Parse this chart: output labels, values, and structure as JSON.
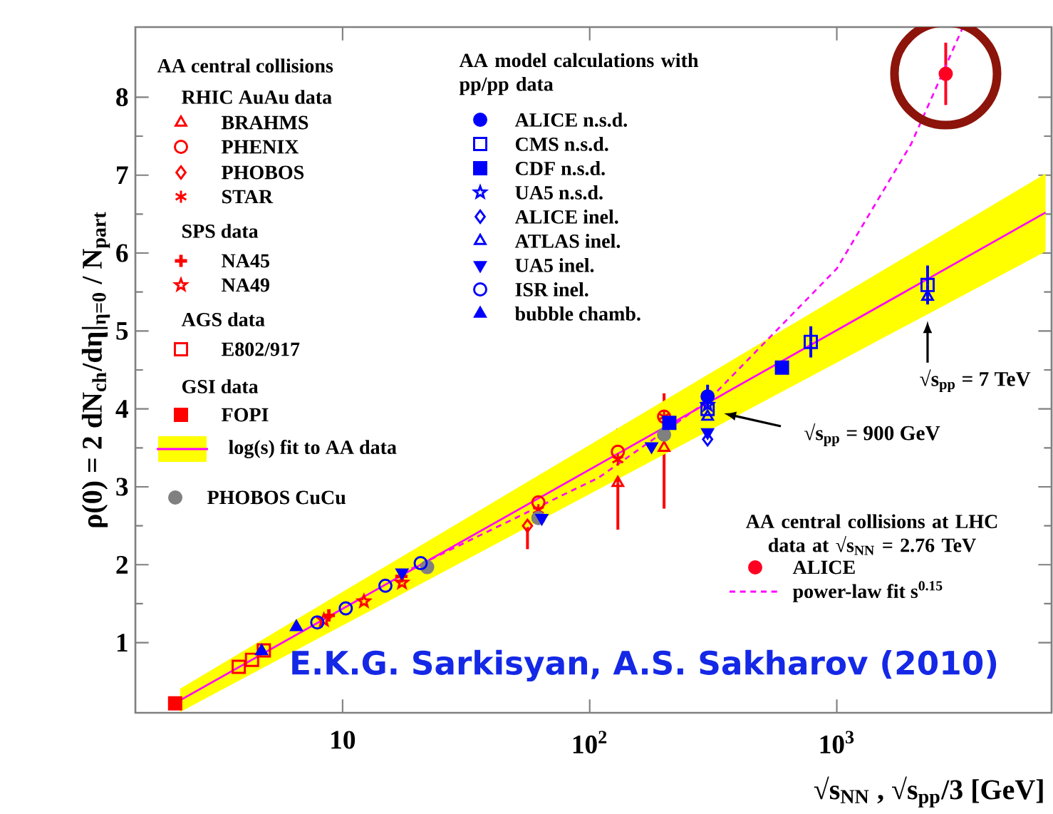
{
  "chart_data": {
    "type": "scatter",
    "log": "x",
    "xlim": [
      1.45,
      7400
    ],
    "ylim": [
      0.1,
      8.9
    ],
    "xticks": [
      10,
      {
        "value": 100,
        "label": "10$^{2}$"
      },
      {
        "value": 1000,
        "label": "10$^{3}$"
      }
    ],
    "yticks": [
      1,
      2,
      3,
      4,
      5,
      6,
      7,
      8
    ],
    "xlabel": "√s$_{NN}$ , √s$_{pp}$/3  [GeV]",
    "ylabel": "ρ(0) = 2 dN$_{ch}$/dη|$_{η=0}$ / N$_{part}$",
    "legend": "top left",
    "series": [
      {
        "name": "BRAHMS",
        "color": "#ff0000",
        "marker": "triangle-open",
        "x": [
          130,
          200
        ],
        "values": [
          3.05,
          3.5
        ],
        "errors": [
          [
            2.45,
            3.75
          ],
          [
            2.72,
            4.2
          ]
        ]
      },
      {
        "name": "PHENIX",
        "color": "#ff0000",
        "marker": "circle-open",
        "x": [
          62,
          130,
          200
        ],
        "values": [
          2.8,
          3.45,
          3.9
        ]
      },
      {
        "name": "PHOBOS",
        "color": "#ff0000",
        "marker": "diamond-open",
        "x": [
          56
        ],
        "values": [
          2.5
        ],
        "errors": [
          0.3
        ]
      },
      {
        "name": "STAR",
        "color": "#ff0000",
        "marker": "cross",
        "x": [
          62,
          130,
          200
        ],
        "values": [
          2.7,
          3.35,
          3.9
        ]
      },
      {
        "name": "NA45",
        "color": "#ff0000",
        "marker": "cross-filled",
        "x": [
          8.8,
          17.3
        ],
        "values": [
          1.35,
          1.85
        ]
      },
      {
        "name": "NA49",
        "color": "#ff0000",
        "marker": "star",
        "x": [
          8.4,
          12.2,
          17.4
        ],
        "values": [
          1.29,
          1.53,
          1.77
        ]
      },
      {
        "name": "E802/917",
        "color": "#ff0000",
        "marker": "square-open",
        "x": [
          3.8,
          4.3,
          4.8
        ],
        "values": [
          0.69,
          0.78,
          0.9
        ]
      },
      {
        "name": "FOPI",
        "color": "#ff0000",
        "marker": "square-filled",
        "x": [
          2.1
        ],
        "values": [
          0.22
        ]
      },
      {
        "name": "log(s) fit to AA data",
        "type": "line",
        "color": "#ff00ff",
        "line_style": "solid",
        "x": [
          2.2,
          7000
        ],
        "values": [
          0.26,
          6.52
        ],
        "lower": [
          0.11,
          6.02
        ],
        "upper": [
          0.41,
          7.02
        ]
      },
      {
        "name": "PHOBOS CuCu",
        "color": "#808080",
        "marker": "circle-filled",
        "x": [
          22,
          62,
          200
        ],
        "values": [
          1.97,
          2.6,
          3.67
        ]
      },
      {
        "name": "ALICE n.s.d.",
        "color": "#0000ff",
        "marker": "circle-filled",
        "x": [
          300
        ],
        "values": [
          4.16
        ],
        "errors": [
          0.15
        ]
      },
      {
        "name": "CMS n.s.d.",
        "color": "#0000ff",
        "marker": "square-open",
        "x": [
          300,
          785,
          2330
        ],
        "values": [
          4.0,
          4.86,
          5.59
        ],
        "errors": [
          null,
          0.2,
          0.25
        ]
      },
      {
        "name": "CDF n.s.d.",
        "color": "#0000ff",
        "marker": "square-filled",
        "x": [
          210,
          600
        ],
        "values": [
          3.82,
          4.53
        ]
      },
      {
        "name": "UA5 n.s.d.",
        "color": "#0000ff",
        "marker": "star",
        "x": [
          300
        ],
        "values": [
          4.05
        ]
      },
      {
        "name": "ALICE inel.",
        "color": "#0000ff",
        "marker": "diamond-open",
        "x": [
          300
        ],
        "values": [
          3.61
        ]
      },
      {
        "name": "ATLAS inel.",
        "color": "#0000ff",
        "marker": "triangle-open",
        "x": [
          300,
          2330
        ],
        "values": [
          3.9,
          5.44
        ]
      },
      {
        "name": "UA5 inel.",
        "color": "#0000ff",
        "marker": "triangle-down-filled",
        "x": [
          17.4,
          64,
          178,
          300
        ],
        "values": [
          1.9,
          2.6,
          3.52,
          3.7
        ]
      },
      {
        "name": "ISR inel.",
        "color": "#0000ff",
        "marker": "circle-open",
        "x": [
          7.9,
          10.3,
          14.9,
          20.7
        ],
        "values": [
          1.26,
          1.44,
          1.73,
          2.02
        ]
      },
      {
        "name": "bubble chamb.",
        "color": "#0000ff",
        "marker": "triangle-filled",
        "x": [
          4.7,
          6.5
        ],
        "values": [
          0.89,
          1.2
        ]
      },
      {
        "name": "ALICE",
        "color": "#ff0022",
        "marker": "circle-filled",
        "x": [
          2760
        ],
        "values": [
          8.3
        ],
        "errors": [
          0.4
        ]
      },
      {
        "name": "power-law fit s$^{0.15}$",
        "type": "line",
        "color": "#ff00ff",
        "line_style": "dashed",
        "x": [
          19,
          109,
          300,
          1000,
          2000,
          3240
        ],
        "values": [
          1.95,
          3.12,
          4.1,
          5.8,
          7.4,
          8.9
        ]
      }
    ],
    "annotations": [
      "AA central collisions",
      "RHIC AuAu data",
      "SPS data",
      "AGS data",
      "GSI data",
      "AA model calculations with pp/pp data",
      "AA central collisions at LHC data at √s$_{NN}$ = 2.76 TeV",
      "√s$_{pp}$ = 900 GeV",
      {
        "text": "√s$_{pp}$ = 7 TeV",
        "x": 2330,
        "y": 5.13
      },
      "E.K.G. Sarkisyan, A.S. Sakharov (2010)"
    ]
  }
}
